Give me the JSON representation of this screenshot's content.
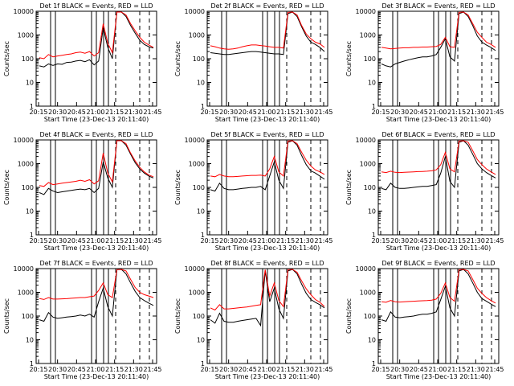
{
  "chart_data": [
    {
      "type": "line",
      "title": "Det 1f BLACK = Events, RED = LLD",
      "ylabel": "Counts/sec",
      "xlabel": "Start Time (23-Dec-13 20:11:40)",
      "x_ticks": [
        "20:15",
        "20:30",
        "20:45",
        "21:00",
        "21:15",
        "21:30",
        "21:45"
      ],
      "y_ticks": [
        "1",
        "10",
        "100",
        "1000",
        "10000"
      ],
      "yscale": "log",
      "ylim": [
        1,
        10000
      ],
      "series": [
        {
          "color": "#000000",
          "values": [
            50,
            45,
            60,
            52,
            60,
            58,
            70,
            72,
            80,
            85,
            75,
            90,
            55,
            80,
            2000,
            300,
            100,
            10000,
            10000,
            6000,
            2500,
            1200,
            600,
            400,
            320,
            280
          ]
        },
        {
          "color": "#ff0000",
          "values": [
            110,
            100,
            150,
            120,
            130,
            140,
            150,
            160,
            180,
            190,
            170,
            200,
            130,
            180,
            3000,
            450,
            180,
            10000,
            10000,
            7000,
            3000,
            1500,
            800,
            500,
            380,
            300
          ]
        }
      ]
    },
    {
      "type": "line",
      "title": "Det 2f BLACK = Events, RED = LLD",
      "ylabel": "Counts/sec",
      "xlabel": "Start Time (23-Dec-13 20:11:40)",
      "x_ticks": [
        "20:15",
        "20:30",
        "20:45",
        "21:00",
        "21:15",
        "21:30",
        "21:45"
      ],
      "y_ticks": [
        "1",
        "10",
        "100",
        "1000",
        "10000"
      ],
      "yscale": "log",
      "ylim": [
        1,
        10000
      ],
      "series": [
        {
          "color": "#000000",
          "values": [
            180,
            170,
            160,
            150,
            150,
            160,
            170,
            180,
            190,
            200,
            200,
            190,
            180,
            170,
            160,
            160,
            150,
            8000,
            10000,
            6000,
            2200,
            900,
            500,
            400,
            300,
            200
          ]
        },
        {
          "color": "#ff0000",
          "values": [
            350,
            320,
            280,
            260,
            250,
            260,
            280,
            320,
            350,
            380,
            380,
            360,
            340,
            320,
            300,
            300,
            280,
            9000,
            10000,
            7000,
            2500,
            1100,
            700,
            500,
            420,
            300
          ]
        }
      ]
    },
    {
      "type": "line",
      "title": "Det 3f BLACK = Events, RED = LLD",
      "ylabel": "Counts/sec",
      "xlabel": "Start Time (23-Dec-13 20:11:40)",
      "x_ticks": [
        "20:15",
        "20:30",
        "20:45",
        "21:00",
        "21:15",
        "21:30",
        "21:45"
      ],
      "y_ticks": [
        "1",
        "10",
        "100",
        "1000",
        "10000"
      ],
      "yscale": "log",
      "ylim": [
        1,
        10000
      ],
      "series": [
        {
          "color": "#000000",
          "values": [
            60,
            50,
            45,
            60,
            70,
            80,
            90,
            100,
            110,
            120,
            120,
            130,
            150,
            300,
            700,
            120,
            80,
            8000,
            10000,
            6000,
            2500,
            900,
            500,
            380,
            300,
            220
          ]
        },
        {
          "color": "#ff0000",
          "values": [
            300,
            280,
            260,
            270,
            280,
            290,
            290,
            300,
            300,
            310,
            310,
            320,
            330,
            400,
            800,
            320,
            300,
            9000,
            10000,
            7000,
            3000,
            1300,
            800,
            500,
            400,
            300
          ]
        }
      ]
    },
    {
      "type": "line",
      "title": "Det 4f BLACK = Events, RED = LLD",
      "ylabel": "Counts/sec",
      "xlabel": "Start Time (23-Dec-13 20:11:40)",
      "x_ticks": [
        "20:15",
        "20:30",
        "20:45",
        "21:00",
        "21:15",
        "21:30",
        "21:45"
      ],
      "y_ticks": [
        "1",
        "10",
        "100",
        "1000",
        "10000"
      ],
      "yscale": "log",
      "ylim": [
        1,
        10000
      ],
      "series": [
        {
          "color": "#000000",
          "values": [
            60,
            50,
            90,
            70,
            60,
            65,
            70,
            75,
            80,
            85,
            80,
            90,
            60,
            90,
            1200,
            250,
            100,
            10000,
            10000,
            6000,
            2500,
            1100,
            600,
            400,
            300,
            250
          ]
        },
        {
          "color": "#ff0000",
          "values": [
            120,
            110,
            160,
            130,
            140,
            150,
            160,
            170,
            180,
            200,
            180,
            210,
            140,
            190,
            2800,
            400,
            170,
            10000,
            10000,
            7000,
            2800,
            1300,
            700,
            450,
            330,
            280
          ]
        }
      ]
    },
    {
      "type": "line",
      "title": "Det 5f BLACK = Events, RED = LLD",
      "ylabel": "Counts/sec",
      "xlabel": "Start Time (23-Dec-13 20:11:40)",
      "x_ticks": [
        "20:15",
        "20:30",
        "20:45",
        "21:00",
        "21:15",
        "21:30",
        "21:45"
      ],
      "y_ticks": [
        "1",
        "10",
        "100",
        "1000",
        "10000"
      ],
      "yscale": "log",
      "ylim": [
        1,
        10000
      ],
      "series": [
        {
          "color": "#000000",
          "values": [
            80,
            70,
            150,
            90,
            80,
            80,
            85,
            90,
            95,
            100,
            100,
            110,
            80,
            300,
            1200,
            200,
            90,
            8000,
            10000,
            6000,
            2200,
            900,
            500,
            400,
            300,
            220
          ]
        },
        {
          "color": "#ff0000",
          "values": [
            300,
            280,
            350,
            300,
            280,
            280,
            290,
            300,
            310,
            320,
            320,
            330,
            300,
            600,
            2000,
            450,
            300,
            9000,
            10000,
            7000,
            3000,
            1400,
            800,
            550,
            450,
            350
          ]
        }
      ]
    },
    {
      "type": "line",
      "title": "Det 6f BLACK = Events, RED = LLD",
      "ylabel": "Counts/sec",
      "xlabel": "Start Time (23-Dec-13 20:11:40)",
      "x_ticks": [
        "20:15",
        "20:30",
        "20:45",
        "21:00",
        "21:15",
        "21:30",
        "21:45"
      ],
      "y_ticks": [
        "1",
        "10",
        "100",
        "1000",
        "10000"
      ],
      "yscale": "log",
      "ylim": [
        1,
        10000
      ],
      "series": [
        {
          "color": "#000000",
          "values": [
            90,
            80,
            150,
            100,
            90,
            90,
            95,
            100,
            105,
            110,
            110,
            120,
            130,
            400,
            2000,
            180,
            100,
            8000,
            10000,
            6000,
            2500,
            1000,
            600,
            420,
            320,
            250
          ]
        },
        {
          "color": "#ff0000",
          "values": [
            450,
            420,
            480,
            430,
            420,
            430,
            440,
            450,
            460,
            470,
            480,
            500,
            550,
            900,
            3000,
            600,
            450,
            9000,
            10000,
            8000,
            3500,
            1500,
            900,
            600,
            450,
            350
          ]
        }
      ]
    },
    {
      "type": "line",
      "title": "Det 7f BLACK = Events, RED = LLD",
      "ylabel": "Counts/sec",
      "xlabel": "Start Time (23-Dec-13 20:11:40)",
      "x_ticks": [
        "20:15",
        "20:30",
        "20:45",
        "21:00",
        "21:15",
        "21:30",
        "21:45"
      ],
      "y_ticks": [
        "1",
        "10",
        "100",
        "1000",
        "10000"
      ],
      "yscale": "log",
      "ylim": [
        1,
        10000
      ],
      "series": [
        {
          "color": "#000000",
          "values": [
            70,
            60,
            140,
            90,
            80,
            85,
            90,
            95,
            100,
            110,
            100,
            120,
            90,
            400,
            1500,
            250,
            100,
            9000,
            10000,
            6000,
            2500,
            1100,
            600,
            450,
            350,
            280
          ]
        },
        {
          "color": "#ff0000",
          "values": [
            550,
            500,
            600,
            520,
            520,
            530,
            540,
            560,
            580,
            600,
            600,
            650,
            700,
            1200,
            2500,
            800,
            600,
            9000,
            10000,
            8000,
            3500,
            1600,
            1000,
            800,
            700,
            600
          ]
        }
      ]
    },
    {
      "type": "line",
      "title": "Det 8f BLACK = Events, RED = LLD",
      "ylabel": "Counts/sec",
      "xlabel": "Start Time (23-Dec-13 20:11:40)",
      "x_ticks": [
        "20:15",
        "20:30",
        "20:45",
        "21:00",
        "21:15",
        "21:30",
        "21:45"
      ],
      "y_ticks": [
        "1",
        "10",
        "100",
        "1000",
        "10000"
      ],
      "yscale": "log",
      "ylim": [
        1,
        10000
      ],
      "series": [
        {
          "color": "#000000",
          "values": [
            70,
            50,
            130,
            60,
            55,
            55,
            60,
            65,
            70,
            75,
            80,
            40,
            8000,
            400,
            1500,
            200,
            80,
            8000,
            10000,
            6000,
            2200,
            900,
            500,
            380,
            300,
            220
          ]
        },
        {
          "color": "#ff0000",
          "values": [
            220,
            180,
            300,
            200,
            200,
            210,
            220,
            230,
            240,
            260,
            280,
            300,
            9000,
            700,
            2500,
            450,
            250,
            9000,
            10000,
            7000,
            3000,
            1400,
            800,
            500,
            380,
            250
          ]
        }
      ]
    },
    {
      "type": "line",
      "title": "Det 9f BLACK = Events, RED = LLD",
      "ylabel": "Counts/sec",
      "xlabel": "Start Time (23-Dec-13 20:11:40)",
      "x_ticks": [
        "20:15",
        "20:30",
        "20:45",
        "21:00",
        "21:15",
        "21:30",
        "21:45"
      ],
      "y_ticks": [
        "1",
        "10",
        "100",
        "1000",
        "10000"
      ],
      "yscale": "log",
      "ylim": [
        1,
        10000
      ],
      "series": [
        {
          "color": "#000000",
          "values": [
            70,
            60,
            150,
            90,
            85,
            90,
            95,
            100,
            110,
            120,
            120,
            130,
            150,
            500,
            1800,
            220,
            100,
            8000,
            10000,
            6000,
            2500,
            1000,
            550,
            420,
            320,
            250
          ]
        },
        {
          "color": "#ff0000",
          "values": [
            400,
            380,
            450,
            400,
            390,
            400,
            410,
            420,
            430,
            440,
            450,
            470,
            520,
            900,
            2500,
            600,
            420,
            9000,
            10000,
            8000,
            3500,
            1500,
            900,
            600,
            450,
            350
          ]
        }
      ]
    }
  ]
}
